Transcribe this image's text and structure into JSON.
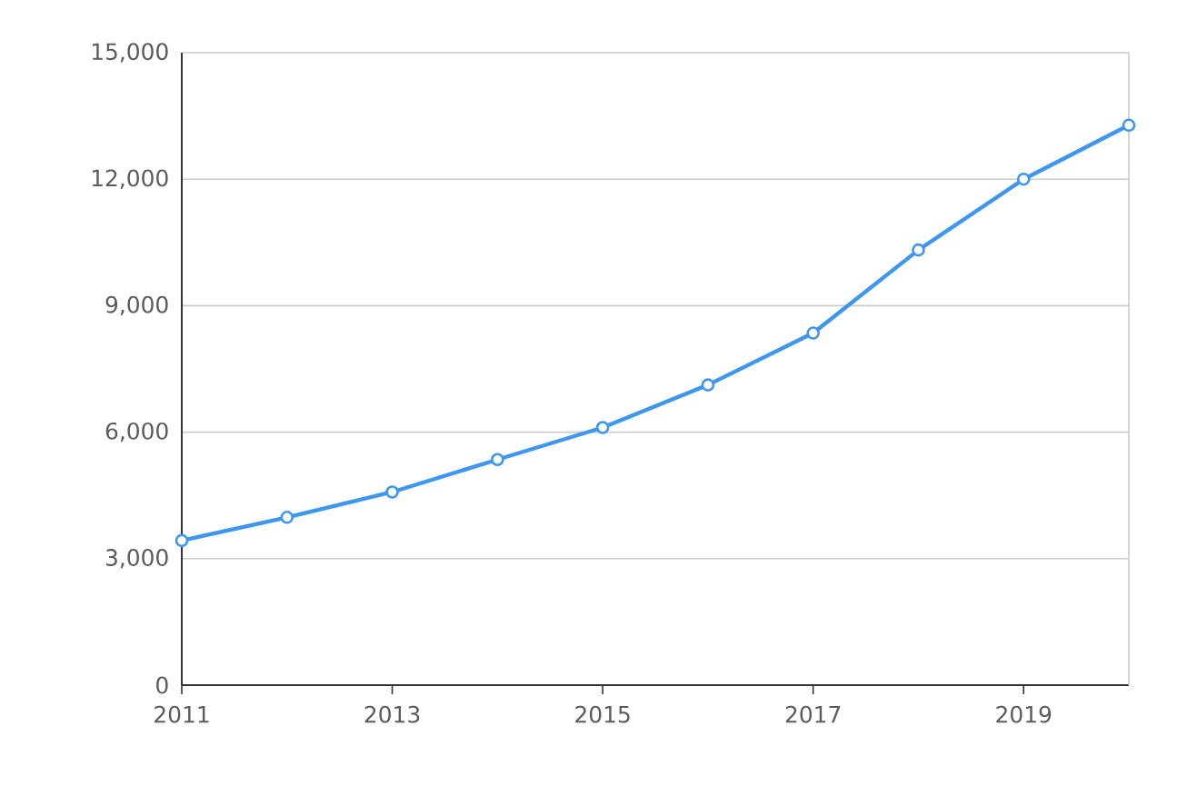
{
  "chart_data": {
    "type": "line",
    "x": [
      2011,
      2012,
      2013,
      2014,
      2015,
      2016,
      2017,
      2018,
      2019,
      2020
    ],
    "series": [
      {
        "color": "#3d96f0",
        "values": [
          3430,
          3980,
          4580,
          5350,
          6110,
          7120,
          8350,
          10320,
          12000,
          13280
        ]
      }
    ],
    "xlim": [
      2011,
      2020
    ],
    "xticks": [
      2011,
      2013,
      2015,
      2017,
      2019
    ],
    "ylim": [
      0,
      15000
    ],
    "yticks": [
      {
        "value": 0,
        "label": "0"
      },
      {
        "value": 3000,
        "label": "3,000"
      },
      {
        "value": 6000,
        "label": "6,000"
      },
      {
        "value": 9000,
        "label": "9,000"
      },
      {
        "value": 12000,
        "label": "12,000"
      },
      {
        "value": 15000,
        "label": "15,000"
      }
    ],
    "grid": "y",
    "marker": "circle",
    "line_style": "solid"
  }
}
